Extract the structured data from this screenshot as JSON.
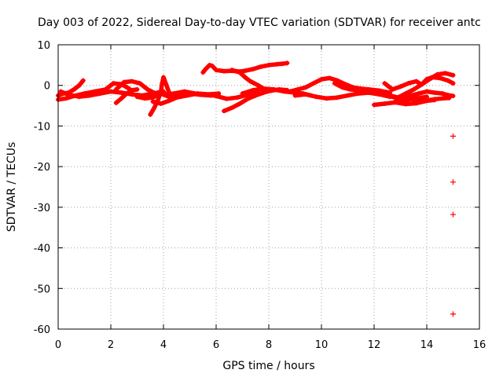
{
  "chart_data": {
    "type": "scatter",
    "title": "Day 003 of 2022, Sidereal Day-to-day VTEC variation (SDTVAR) for receiver antc",
    "xlabel": "GPS time / hours",
    "ylabel": "SDTVAR / TECUs",
    "xlim": [
      0,
      16
    ],
    "ylim": [
      -60,
      10
    ],
    "x_ticks": [
      "0",
      "2",
      "4",
      "6",
      "8",
      "10",
      "12",
      "14",
      "16"
    ],
    "y_ticks": [
      "10",
      "0",
      "-10",
      "-20",
      "-30",
      "-40",
      "-50",
      "-60"
    ],
    "grid": true,
    "marker": "+",
    "colors": {
      "series": "#ff0000",
      "grid": "#a0a0a0",
      "axis": "#000000"
    },
    "series": [
      {
        "name": "tracks",
        "tracks": [
          [
            [
              0.0,
              -2.5
            ],
            [
              0.2,
              -2.0
            ],
            [
              0.4,
              -1.8
            ],
            [
              0.6,
              -1.0
            ],
            [
              0.8,
              0.0
            ],
            [
              0.95,
              1.2
            ]
          ],
          [
            [
              0.0,
              -3.5
            ],
            [
              0.3,
              -3.2
            ],
            [
              0.6,
              -2.6
            ],
            [
              1.0,
              -2.0
            ],
            [
              1.4,
              -1.5
            ],
            [
              1.8,
              -1.0
            ],
            [
              2.1,
              0.5
            ],
            [
              2.4,
              0.3
            ],
            [
              2.7,
              -0.8
            ]
          ],
          [
            [
              0.1,
              -1.5
            ],
            [
              0.4,
              -2.3
            ],
            [
              0.8,
              -2.8
            ],
            [
              1.2,
              -2.5
            ],
            [
              1.6,
              -2.0
            ],
            [
              2.0,
              -1.5
            ],
            [
              2.4,
              -1.8
            ],
            [
              2.8,
              -2.2
            ],
            [
              3.2,
              -2.5
            ],
            [
              3.6,
              -2.0
            ],
            [
              4.0,
              -1.5
            ]
          ],
          [
            [
              2.2,
              -1.0
            ],
            [
              2.5,
              0.8
            ],
            [
              2.8,
              1.0
            ],
            [
              3.1,
              0.5
            ],
            [
              3.4,
              -1.0
            ],
            [
              3.7,
              -2.0
            ],
            [
              4.0,
              -2.2
            ],
            [
              4.4,
              -2.0
            ],
            [
              4.8,
              -1.5
            ],
            [
              5.2,
              -2.0
            ],
            [
              5.6,
              -2.2
            ],
            [
              6.0,
              -2.6
            ],
            [
              6.4,
              -3.3
            ],
            [
              6.8,
              -3.0
            ],
            [
              7.2,
              -2.3
            ],
            [
              7.6,
              -1.8
            ]
          ],
          [
            [
              2.2,
              -4.3
            ],
            [
              2.4,
              -3.2
            ],
            [
              2.6,
              -2.0
            ],
            [
              2.8,
              -1.2
            ],
            [
              3.0,
              -1.0
            ]
          ],
          [
            [
              3.0,
              -2.8
            ],
            [
              3.3,
              -3.2
            ],
            [
              3.6,
              -3.0
            ],
            [
              3.9,
              -2.0
            ],
            [
              4.2,
              -2.8
            ],
            [
              4.6,
              -2.5
            ],
            [
              5.0,
              -2.0
            ],
            [
              5.4,
              -2.3
            ],
            [
              5.8,
              -2.5
            ]
          ],
          [
            [
              3.5,
              -7.2
            ],
            [
              3.65,
              -5.5
            ],
            [
              3.8,
              -3.5
            ],
            [
              3.9,
              -1.5
            ],
            [
              3.95,
              0.5
            ],
            [
              4.0,
              2.0
            ],
            [
              4.1,
              0.3
            ],
            [
              4.2,
              -1.5
            ]
          ],
          [
            [
              3.6,
              -4.0
            ],
            [
              3.9,
              -4.5
            ],
            [
              4.2,
              -3.8
            ],
            [
              4.5,
              -3.0
            ],
            [
              4.9,
              -2.5
            ],
            [
              5.3,
              -2.0
            ],
            [
              5.7,
              -2.2
            ],
            [
              6.1,
              -2.0
            ]
          ],
          [
            [
              5.5,
              3.2
            ],
            [
              5.6,
              4.0
            ],
            [
              5.75,
              5.0
            ],
            [
              5.85,
              4.8
            ],
            [
              6.0,
              3.8
            ],
            [
              6.3,
              3.5
            ],
            [
              6.6,
              3.6
            ],
            [
              6.9,
              3.4
            ],
            [
              7.1,
              3.6
            ],
            [
              7.4,
              4.0
            ],
            [
              7.7,
              4.6
            ],
            [
              8.0,
              5.0
            ],
            [
              8.3,
              5.2
            ],
            [
              8.5,
              5.3
            ],
            [
              8.7,
              5.5
            ]
          ],
          [
            [
              6.6,
              3.8
            ],
            [
              6.9,
              3.2
            ],
            [
              7.1,
              2.0
            ],
            [
              7.3,
              1.0
            ],
            [
              7.6,
              0.0
            ],
            [
              7.8,
              -0.8
            ]
          ],
          [
            [
              6.3,
              -6.3
            ],
            [
              6.6,
              -5.5
            ],
            [
              6.9,
              -4.5
            ],
            [
              7.2,
              -3.3
            ],
            [
              7.5,
              -2.5
            ],
            [
              7.8,
              -1.8
            ],
            [
              8.1,
              -1.3
            ],
            [
              8.4,
              -1.0
            ],
            [
              8.7,
              -1.2
            ]
          ],
          [
            [
              7.0,
              -2.0
            ],
            [
              7.4,
              -1.2
            ],
            [
              7.8,
              -0.8
            ],
            [
              8.2,
              -1.0
            ],
            [
              8.6,
              -1.5
            ],
            [
              9.0,
              -1.8
            ],
            [
              9.3,
              -2.0
            ],
            [
              9.6,
              -2.5
            ]
          ],
          [
            [
              8.8,
              -1.5
            ],
            [
              9.1,
              -1.0
            ],
            [
              9.4,
              -0.5
            ],
            [
              9.7,
              0.5
            ],
            [
              10.0,
              1.5
            ],
            [
              10.3,
              1.8
            ],
            [
              10.6,
              1.2
            ],
            [
              10.9,
              0.3
            ],
            [
              11.2,
              -0.5
            ],
            [
              11.5,
              -0.8
            ],
            [
              11.8,
              -1.0
            ],
            [
              12.2,
              -1.3
            ],
            [
              12.6,
              -1.8
            ]
          ],
          [
            [
              9.0,
              -2.5
            ],
            [
              9.4,
              -2.2
            ],
            [
              9.8,
              -2.8
            ],
            [
              10.2,
              -3.2
            ],
            [
              10.6,
              -3.0
            ],
            [
              11.0,
              -2.5
            ],
            [
              11.4,
              -2.0
            ],
            [
              11.8,
              -1.8
            ],
            [
              12.2,
              -2.2
            ],
            [
              12.6,
              -2.8
            ]
          ],
          [
            [
              10.5,
              0.5
            ],
            [
              10.8,
              -0.5
            ],
            [
              11.1,
              -1.0
            ],
            [
              11.4,
              -1.2
            ],
            [
              11.7,
              -1.6
            ],
            [
              12.0,
              -1.8
            ],
            [
              12.4,
              -2.4
            ],
            [
              12.8,
              -3.0
            ],
            [
              13.2,
              -3.6
            ],
            [
              13.6,
              -3.2
            ],
            [
              14.0,
              -2.8
            ]
          ],
          [
            [
              12.0,
              -4.8
            ],
            [
              12.4,
              -4.5
            ],
            [
              12.8,
              -4.2
            ],
            [
              13.2,
              -4.6
            ],
            [
              13.6,
              -4.4
            ],
            [
              14.0,
              -3.8
            ],
            [
              14.3,
              -3.6
            ]
          ],
          [
            [
              12.4,
              0.5
            ],
            [
              12.7,
              -1.0
            ],
            [
              13.0,
              -0.3
            ],
            [
              13.3,
              0.5
            ],
            [
              13.6,
              1.0
            ],
            [
              13.8,
              0.2
            ],
            [
              14.0,
              1.5
            ],
            [
              14.2,
              2.0
            ],
            [
              14.5,
              1.8
            ],
            [
              14.8,
              1.2
            ],
            [
              15.0,
              0.5
            ]
          ],
          [
            [
              12.6,
              -2.5
            ],
            [
              12.9,
              -3.0
            ],
            [
              13.2,
              -2.0
            ],
            [
              13.5,
              -1.0
            ],
            [
              13.8,
              0.2
            ],
            [
              14.1,
              1.5
            ],
            [
              14.4,
              2.7
            ],
            [
              14.7,
              3.0
            ],
            [
              15.0,
              2.5
            ]
          ],
          [
            [
              12.8,
              -4.0
            ],
            [
              13.1,
              -3.2
            ],
            [
              13.4,
              -2.5
            ],
            [
              13.7,
              -2.0
            ],
            [
              14.0,
              -1.5
            ],
            [
              14.3,
              -1.8
            ],
            [
              14.6,
              -2.0
            ],
            [
              14.8,
              -2.4
            ],
            [
              15.0,
              -2.6
            ]
          ],
          [
            [
              13.5,
              -4.2
            ],
            [
              13.9,
              -3.8
            ],
            [
              14.3,
              -3.4
            ],
            [
              14.6,
              -3.2
            ],
            [
              14.85,
              -3.1
            ]
          ]
        ],
        "isolated_points": [
          [
            15.0,
            -12.5
          ],
          [
            15.0,
            -23.8
          ],
          [
            15.0,
            -31.8
          ],
          [
            15.0,
            -56.3
          ]
        ]
      }
    ]
  }
}
